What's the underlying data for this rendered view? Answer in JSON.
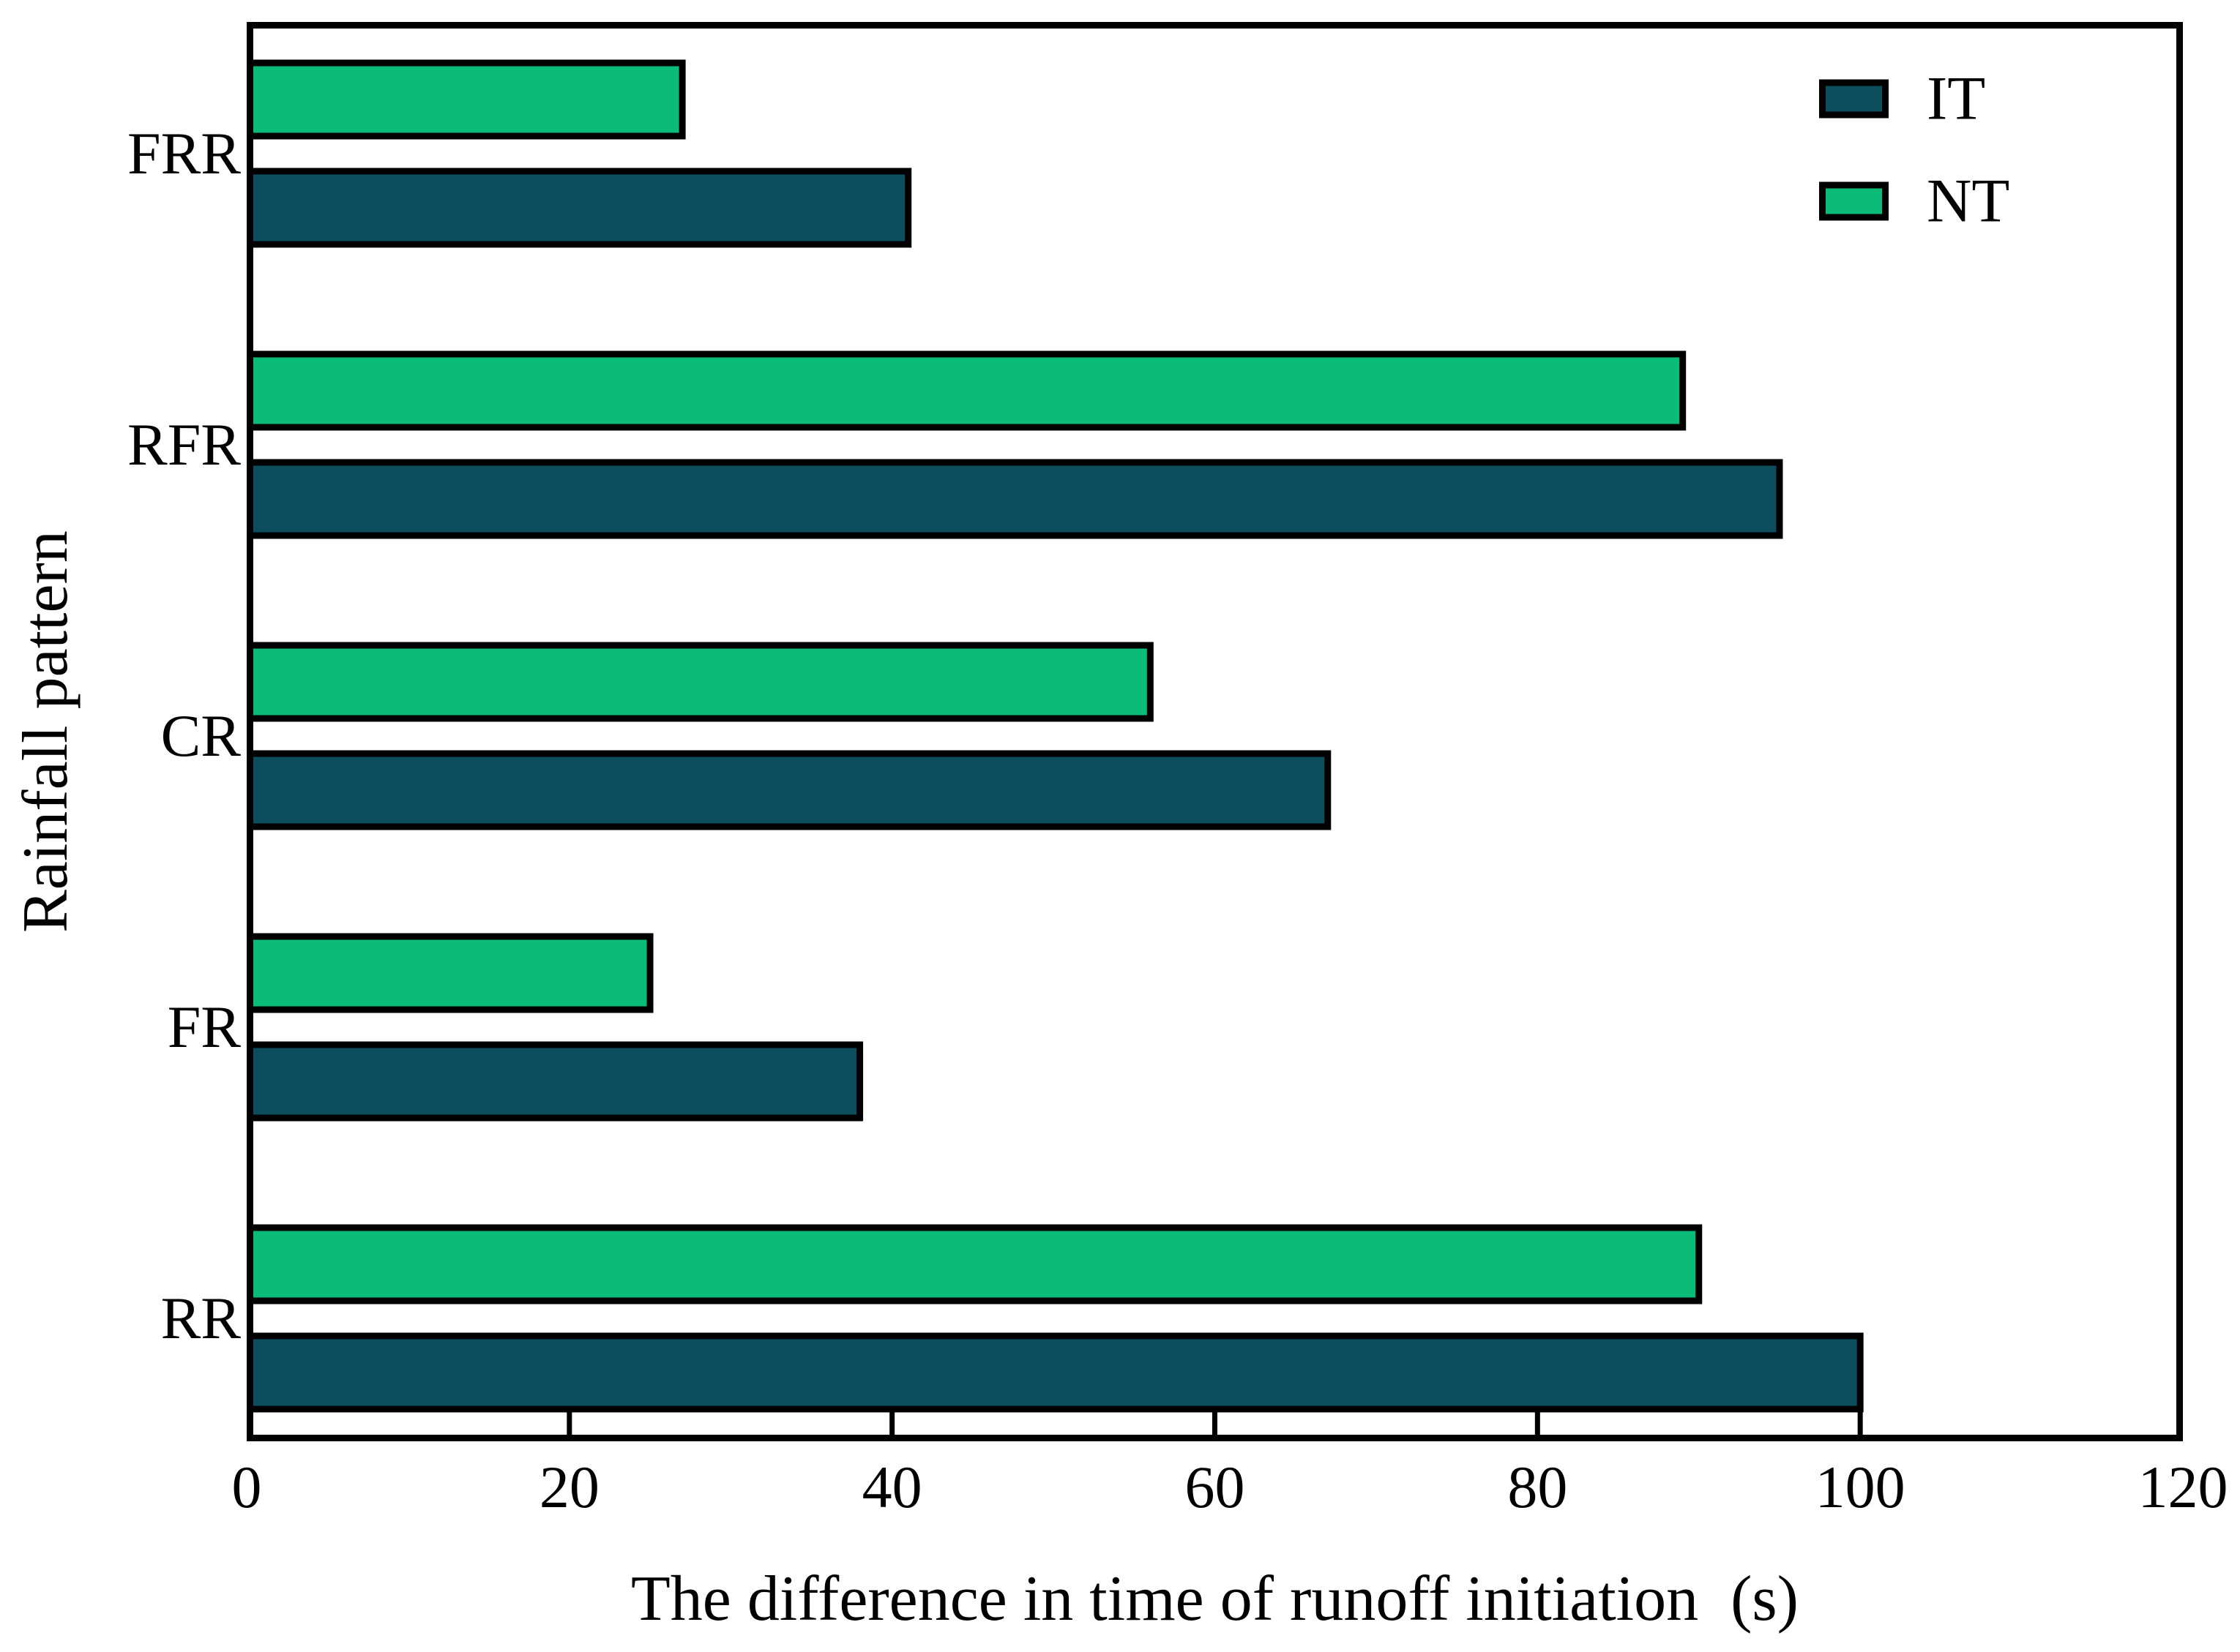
{
  "chart_data": {
    "type": "bar",
    "orientation": "horizontal",
    "title": "",
    "xlabel": "The difference in time of runoff initiation  (s)",
    "ylabel": "Rainfall pattern",
    "xlim": [
      0,
      120
    ],
    "xticks": [
      0,
      20,
      40,
      60,
      80,
      100,
      120
    ],
    "grid": false,
    "legend_position": "top-right",
    "categories_top_to_bottom": [
      "FRR",
      "RFR",
      "CR",
      "FR",
      "RR"
    ],
    "bar_order_top_to_bottom": [
      "NT",
      "IT"
    ],
    "series": [
      {
        "name": "IT",
        "color": "#0C4E5E",
        "values": [
          41,
          95,
          67,
          38,
          100
        ]
      },
      {
        "name": "NT",
        "color": "#0ABC78",
        "values": [
          27,
          89,
          56,
          25,
          90
        ]
      }
    ]
  },
  "colors": {
    "axis": "#000000",
    "background": "#ffffff",
    "it_fill": "#0C4E5E",
    "nt_fill": "#0ABC78"
  }
}
